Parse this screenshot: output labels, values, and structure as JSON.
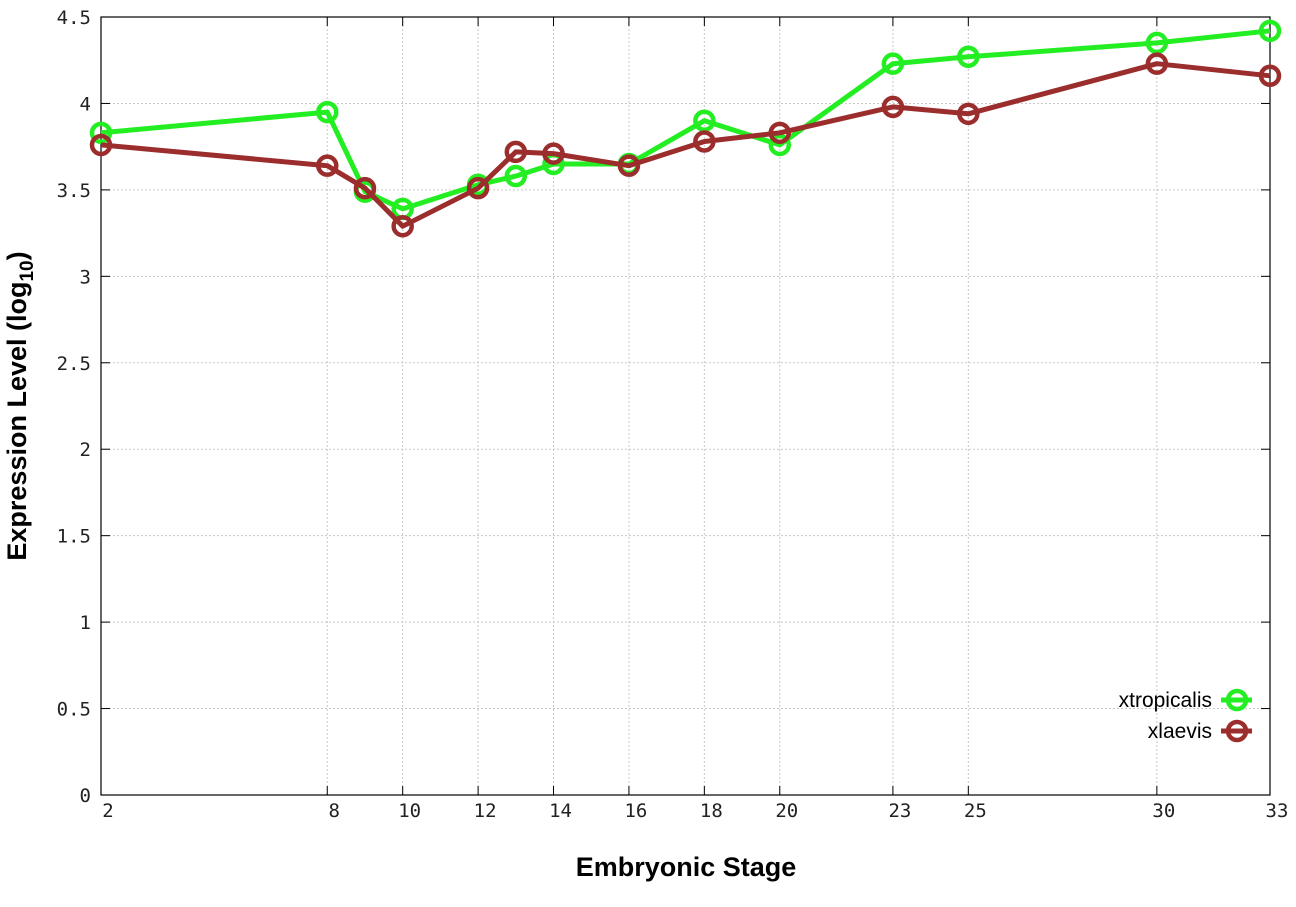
{
  "chart_data": {
    "type": "line",
    "xlabel": "Embryonic Stage",
    "ylabel_main": "Expression Level (log",
    "ylabel_sub": "10",
    "ylabel_close": ")",
    "x_ticks": [
      2,
      8,
      10,
      12,
      14,
      16,
      18,
      20,
      23,
      25,
      30,
      33
    ],
    "x_tick_labels": [
      "2",
      "8",
      "10",
      "12",
      "14",
      "16",
      "18",
      "20",
      "23",
      "25",
      "30",
      "33"
    ],
    "y_ticks": [
      0,
      0.5,
      1,
      1.5,
      2,
      2.5,
      3,
      3.5,
      4,
      4.5
    ],
    "y_tick_labels": [
      "0",
      "0.5",
      "1",
      "1.5",
      "2",
      "2.5",
      "3",
      "3.5",
      "4",
      "4.5"
    ],
    "xlim": [
      2,
      33
    ],
    "ylim": [
      0,
      4.5
    ],
    "grid": true,
    "legend_position": "bottom-right",
    "series": [
      {
        "name": "xtropicalis",
        "color": "#22ee22",
        "x": [
          2,
          8,
          9,
          10,
          12,
          13,
          14,
          16,
          18,
          20,
          23,
          25,
          30,
          33
        ],
        "y": [
          3.83,
          3.95,
          3.49,
          3.39,
          3.53,
          3.58,
          3.65,
          3.65,
          3.9,
          3.76,
          4.23,
          4.27,
          4.35,
          4.42
        ]
      },
      {
        "name": "xlaevis",
        "color": "#9b2d2d",
        "x": [
          2,
          8,
          9,
          10,
          12,
          13,
          14,
          16,
          18,
          20,
          23,
          25,
          30,
          33
        ],
        "y": [
          3.76,
          3.64,
          3.51,
          3.29,
          3.51,
          3.72,
          3.71,
          3.64,
          3.78,
          3.83,
          3.98,
          3.94,
          4.23,
          4.16
        ]
      }
    ]
  }
}
